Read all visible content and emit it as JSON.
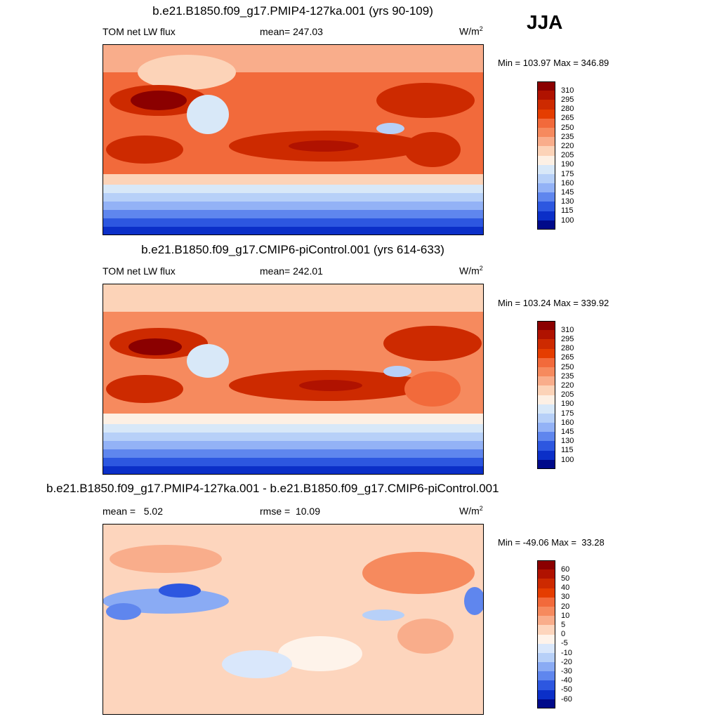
{
  "season": "JJA",
  "panels": [
    {
      "title": "b.e21.B1850.f09_g17.PMIP4-127ka.001 (yrs 90-109)",
      "left": "TOM net LW flux",
      "middle": "mean= 247.03",
      "units_base": "W/m",
      "units_exp": "2",
      "minmax": "Min = 103.97 Max = 346.89",
      "colorbar": {
        "labels": [
          "310",
          "295",
          "280",
          "265",
          "250",
          "235",
          "220",
          "205",
          "190",
          "175",
          "160",
          "145",
          "130",
          "115",
          "100"
        ],
        "colors": [
          "#8b0000",
          "#b01200",
          "#cd2a00",
          "#e53d00",
          "#f26a3b",
          "#f68a5e",
          "#f9ad8b",
          "#fcd3b8",
          "#fdf0e4",
          "#d8e8f8",
          "#b7d0f8",
          "#93b2f6",
          "#5f86ee",
          "#2d57e0",
          "#0b2fc8",
          "#000a8a"
        ]
      }
    },
    {
      "title": "b.e21.B1850.f09_g17.CMIP6-piControl.001 (yrs 614-633)",
      "left": "TOM net LW flux",
      "middle": "mean= 242.01",
      "units_base": "W/m",
      "units_exp": "2",
      "minmax": "Min = 103.24 Max = 339.92",
      "colorbar": {
        "labels": [
          "310",
          "295",
          "280",
          "265",
          "250",
          "235",
          "220",
          "205",
          "190",
          "175",
          "160",
          "145",
          "130",
          "115",
          "100"
        ],
        "colors": [
          "#8b0000",
          "#b01200",
          "#cd2a00",
          "#e53d00",
          "#f26a3b",
          "#f68a5e",
          "#f9ad8b",
          "#fcd3b8",
          "#fdf0e4",
          "#d8e8f8",
          "#b7d0f8",
          "#93b2f6",
          "#5f86ee",
          "#2d57e0",
          "#0b2fc8",
          "#000a8a"
        ]
      }
    },
    {
      "title": "b.e21.B1850.f09_g17.PMIP4-127ka.001 - b.e21.B1850.f09_g17.CMIP6-piControl.001",
      "left": "mean =   5.02",
      "middle": "rmse =  10.09",
      "units_base": "W/m",
      "units_exp": "2",
      "minmax": "Min = -49.06 Max =  33.28",
      "colorbar": {
        "labels": [
          "60",
          "50",
          "40",
          "30",
          "20",
          "10",
          "5",
          "0",
          "-5",
          "-10",
          "-20",
          "-30",
          "-40",
          "-50",
          "-60"
        ],
        "colors": [
          "#8b0000",
          "#b01200",
          "#cd2a00",
          "#e53d00",
          "#f26a3b",
          "#f68a5e",
          "#f9ad8b",
          "#fdd5bd",
          "#fef3ea",
          "#d9e7fb",
          "#b7d0f8",
          "#8aabf4",
          "#5f86ee",
          "#2d57e0",
          "#0b2fc8",
          "#000a8a"
        ]
      }
    }
  ]
}
